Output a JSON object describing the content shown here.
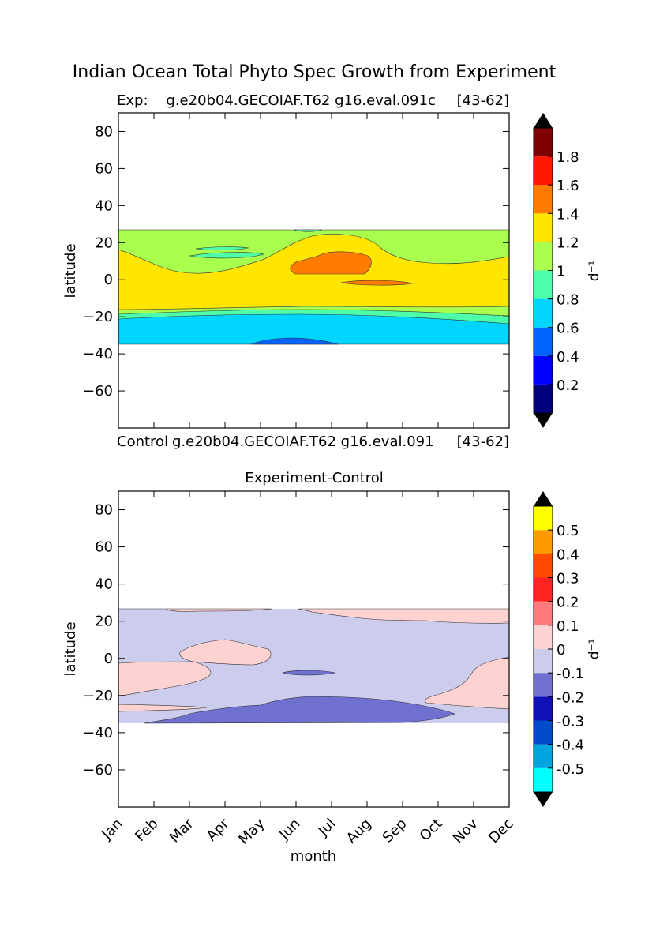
{
  "figure": {
    "title": "Indian Ocean Total Phyto Spec Growth from Experiment",
    "xlabel": "month"
  },
  "chart_data": [
    {
      "type": "heatmap",
      "title_left": "Exp:    g.e20b04.GECOIAF.T62 g16.eval.091c",
      "title_right": "[43-62]",
      "ylabel": "latitude",
      "xlim": [
        1,
        12
      ],
      "ylim": [
        -80,
        90
      ],
      "yticks": [
        80,
        60,
        40,
        20,
        0,
        -20,
        -40,
        -60
      ],
      "ytick_labels": [
        "80",
        "60",
        "40",
        "20",
        "0",
        "−20",
        "−40",
        "−60"
      ],
      "data_lat_range": [
        -34,
        27
      ],
      "colorbar": {
        "label": "d⁻¹",
        "levels": [
          0,
          0.2,
          0.4,
          0.6,
          0.8,
          1.0,
          1.2,
          1.4,
          1.6,
          1.8,
          2.0
        ],
        "colors": [
          "#00007f",
          "#0000ff",
          "#0063ff",
          "#00d5ff",
          "#4effa9",
          "#a9ff4e",
          "#ffe500",
          "#ff7c00",
          "#ff1700",
          "#7f0000"
        ],
        "tick_labels": [
          "0.2",
          "0.4",
          "0.6",
          "0.8",
          "1",
          "1.2",
          "1.4",
          "1.6",
          "1.8"
        ],
        "extend": "both"
      },
      "bands": [
        {
          "lat_range": [
            -34,
            -31
          ],
          "value": 0.5,
          "note": "Jun-Jul minimum"
        },
        {
          "lat_range": [
            -34,
            -20
          ],
          "value": 0.7
        },
        {
          "lat_range": [
            -20,
            17
          ],
          "value": 1.3
        },
        {
          "lat_range": [
            4,
            15
          ],
          "value": 1.5,
          "note": "Jun-Aug maximum"
        },
        {
          "lat_range": [
            17,
            27
          ],
          "value": 1.1
        }
      ]
    },
    {
      "type": "heatmap",
      "title_left": "Control",
      "title_center": "g.e20b04.GECOIAF.T62 g16.eval.091",
      "title_right": "[43-62]",
      "title": "Experiment-Control",
      "ylabel": "latitude",
      "xlim": [
        1,
        12
      ],
      "ylim": [
        -80,
        90
      ],
      "xticks": [
        "Jan",
        "Feb",
        "Mar",
        "Apr",
        "May",
        "Jun",
        "Jul",
        "Aug",
        "Sep",
        "Oct",
        "Nov",
        "Dec"
      ],
      "yticks": [
        80,
        60,
        40,
        20,
        0,
        -20,
        -40,
        -60
      ],
      "ytick_labels": [
        "80",
        "60",
        "40",
        "20",
        "0",
        "−20",
        "−40",
        "−60"
      ],
      "data_lat_range": [
        -34,
        27
      ],
      "colorbar": {
        "label": "d⁻¹",
        "levels": [
          -0.6,
          -0.5,
          -0.4,
          -0.3,
          -0.2,
          -0.1,
          0,
          0.1,
          0.2,
          0.3,
          0.4,
          0.5,
          0.6
        ],
        "colors": [
          "#00ffff",
          "#00a5e0",
          "#004cc8",
          "#1010b8",
          "#7070d0",
          "#cccced",
          "#ffd2d2",
          "#ff7a7a",
          "#ff2222",
          "#ff4a00",
          "#ff9a00",
          "#ffff00"
        ],
        "tick_labels": [
          "-0.5",
          "-0.4",
          "-0.3",
          "-0.2",
          "-0.1",
          "0",
          "0.1",
          "0.2",
          "0.3",
          "0.4",
          "0.5"
        ],
        "extend": "both"
      },
      "bands": [
        {
          "lat_range": [
            -34,
            27
          ],
          "value": -0.05
        },
        {
          "lat_range": [
            -34,
            -20
          ],
          "value": -0.15,
          "note": "Apr-Oct"
        },
        {
          "lat_range": [
            -27,
            -2
          ],
          "value": 0.05,
          "note": "Jan-Apr west"
        },
        {
          "lat_range": [
            0,
            10
          ],
          "value": 0.05,
          "note": "Mar-May"
        },
        {
          "lat_range": [
            19,
            27
          ],
          "value": 0.05,
          "note": "Jun-Dec north"
        },
        {
          "lat_range": [
            -27,
            0
          ],
          "value": 0.05,
          "note": "Nov-Dec east"
        }
      ]
    }
  ]
}
